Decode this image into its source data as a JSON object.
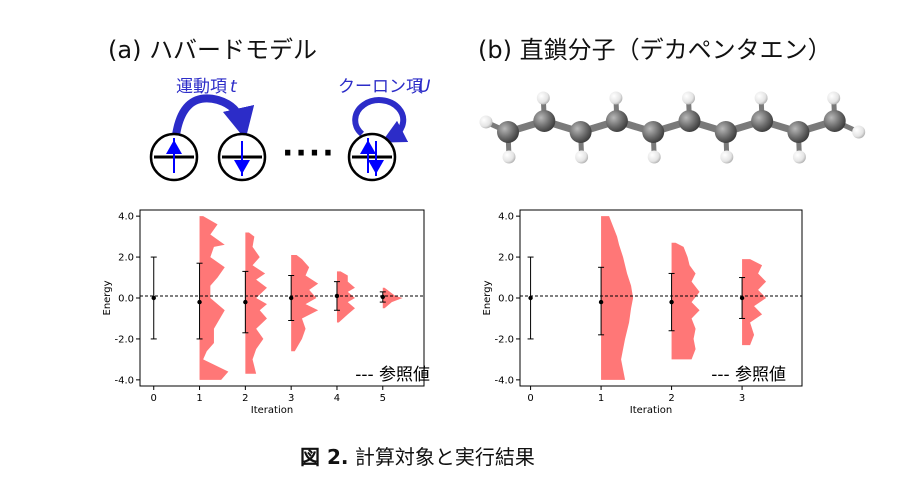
{
  "panel_a": {
    "title": "(a) ハバードモデル",
    "kinetic_label": "運動項",
    "kinetic_symbol": "t",
    "coulomb_label": "クーロン項",
    "coulomb_symbol": "U",
    "ellipsis": "····"
  },
  "panel_b": {
    "title": "(b) 直鎖分子（デカペンタエン）"
  },
  "caption": {
    "label": "図 2.",
    "text": " 計算対象と実行結果"
  },
  "colors": {
    "arrow_blue": "#2c2cc8",
    "fill_red": "#ff7777",
    "carbon": "#6a6a6a",
    "hydrogen": "#f0f0f0"
  },
  "chart_data": [
    {
      "type": "violin",
      "xlabel": "Iteration",
      "ylabel": "Energy",
      "xlim": [
        -0.3,
        5.9
      ],
      "ylim": [
        -4.3,
        4.3
      ],
      "x_ticks": [
        "0",
        "1",
        "2",
        "3",
        "4",
        "5"
      ],
      "y_ticks": [
        "4.0",
        "2.0",
        "0.0",
        "-2.0",
        "-4.0"
      ],
      "reference_line": 0.1,
      "legend": "--- 参照値",
      "series": [
        {
          "x": 0,
          "mean": 0.0,
          "err_low": -2.0,
          "err_high": 2.0,
          "dist": []
        },
        {
          "x": 1,
          "mean": -0.2,
          "err_low": -2.0,
          "err_high": 1.7,
          "dist": [
            [
              -4.0,
              0.6
            ],
            [
              -3.6,
              0.8
            ],
            [
              -3.0,
              0.1
            ],
            [
              -2.6,
              0.2
            ],
            [
              -2.2,
              0.4
            ],
            [
              -1.5,
              0.4
            ],
            [
              -0.6,
              0.7
            ],
            [
              -0.3,
              0.5
            ],
            [
              0.0,
              0.3
            ],
            [
              0.6,
              0.3
            ],
            [
              1.0,
              0.5
            ],
            [
              1.5,
              0.7
            ],
            [
              2.0,
              0.3
            ],
            [
              2.5,
              0.4
            ],
            [
              2.6,
              0.7
            ],
            [
              3.1,
              0.3
            ],
            [
              3.6,
              0.5
            ],
            [
              4.0,
              0.1
            ]
          ]
        },
        {
          "x": 2,
          "mean": -0.2,
          "err_low": -1.7,
          "err_high": 1.3,
          "dist": [
            [
              -3.7,
              0.3
            ],
            [
              -3.0,
              0.2
            ],
            [
              -2.5,
              0.3
            ],
            [
              -2.0,
              0.5
            ],
            [
              -1.5,
              0.3
            ],
            [
              -1.0,
              0.6
            ],
            [
              -0.6,
              0.4
            ],
            [
              -0.3,
              0.6
            ],
            [
              0.0,
              0.3
            ],
            [
              0.5,
              0.6
            ],
            [
              0.9,
              0.3
            ],
            [
              1.2,
              0.55
            ],
            [
              1.6,
              0.2
            ],
            [
              2.0,
              0.4
            ],
            [
              2.5,
              0.2
            ],
            [
              3.0,
              0.25
            ],
            [
              3.2,
              0.1
            ]
          ]
        },
        {
          "x": 3,
          "mean": 0.0,
          "err_low": -1.1,
          "err_high": 1.1,
          "dist": [
            [
              -2.6,
              0.1
            ],
            [
              -2.0,
              0.3
            ],
            [
              -1.5,
              0.4
            ],
            [
              -1.0,
              0.3
            ],
            [
              -0.6,
              0.75
            ],
            [
              -0.3,
              0.4
            ],
            [
              0.0,
              0.7
            ],
            [
              0.4,
              0.5
            ],
            [
              0.7,
              0.75
            ],
            [
              1.1,
              0.4
            ],
            [
              1.5,
              0.5
            ],
            [
              1.9,
              0.3
            ],
            [
              2.1,
              0.15
            ]
          ]
        },
        {
          "x": 4,
          "mean": 0.1,
          "err_low": -0.6,
          "err_high": 0.8,
          "dist": [
            [
              -1.2,
              0.05
            ],
            [
              -0.8,
              0.3
            ],
            [
              -0.5,
              0.5
            ],
            [
              -0.2,
              0.3
            ],
            [
              0.0,
              0.5
            ],
            [
              0.3,
              0.3
            ],
            [
              0.5,
              0.5
            ],
            [
              0.8,
              0.3
            ],
            [
              1.1,
              0.3
            ],
            [
              1.3,
              0.1
            ]
          ]
        },
        {
          "x": 5,
          "mean": 0.05,
          "err_low": -0.2,
          "err_high": 0.3,
          "dist": [
            [
              -0.5,
              0.05
            ],
            [
              -0.2,
              0.25
            ],
            [
              0.0,
              0.55
            ],
            [
              0.1,
              0.35
            ],
            [
              0.3,
              0.2
            ],
            [
              0.5,
              0.05
            ]
          ]
        }
      ]
    },
    {
      "type": "violin",
      "xlabel": "Iteration",
      "ylabel": "Energy",
      "xlim": [
        -0.15,
        3.85
      ],
      "ylim": [
        -4.3,
        4.3
      ],
      "x_ticks": [
        "0",
        "1",
        "2",
        "3"
      ],
      "y_ticks": [
        "4.0",
        "2.0",
        "0.0",
        "-2.0",
        "-4.0"
      ],
      "reference_line": 0.1,
      "legend": "--- 参照値",
      "series": [
        {
          "x": 0,
          "mean": 0.0,
          "err_low": -2.0,
          "err_high": 2.0,
          "dist": []
        },
        {
          "x": 1,
          "mean": -0.2,
          "err_low": -1.8,
          "err_high": 1.5,
          "dist": [
            [
              -4.0,
              0.6
            ],
            [
              -3.0,
              0.5
            ],
            [
              -2.0,
              0.6
            ],
            [
              -1.2,
              0.7
            ],
            [
              -0.5,
              0.75
            ],
            [
              0.0,
              0.8
            ],
            [
              0.6,
              0.75
            ],
            [
              1.2,
              0.65
            ],
            [
              2.0,
              0.55
            ],
            [
              2.6,
              0.45
            ],
            [
              3.0,
              0.4
            ],
            [
              3.5,
              0.3
            ],
            [
              4.0,
              0.2
            ]
          ]
        },
        {
          "x": 2,
          "mean": -0.2,
          "err_low": -1.6,
          "err_high": 1.2,
          "dist": [
            [
              -3.0,
              0.5
            ],
            [
              -2.5,
              0.6
            ],
            [
              -2.0,
              0.55
            ],
            [
              -1.5,
              0.6
            ],
            [
              -1.0,
              0.5
            ],
            [
              -0.6,
              0.7
            ],
            [
              -0.2,
              0.5
            ],
            [
              0.3,
              0.7
            ],
            [
              0.8,
              0.5
            ],
            [
              1.2,
              0.6
            ],
            [
              1.6,
              0.45
            ],
            [
              2.0,
              0.4
            ],
            [
              2.5,
              0.3
            ],
            [
              2.7,
              0.1
            ]
          ]
        },
        {
          "x": 3,
          "mean": 0.0,
          "err_low": -1.0,
          "err_high": 1.0,
          "dist": [
            [
              -2.3,
              0.2
            ],
            [
              -1.8,
              0.3
            ],
            [
              -1.2,
              0.2
            ],
            [
              -0.8,
              0.5
            ],
            [
              -0.4,
              0.3
            ],
            [
              0.0,
              0.6
            ],
            [
              0.4,
              0.4
            ],
            [
              0.8,
              0.6
            ],
            [
              1.2,
              0.4
            ],
            [
              1.6,
              0.5
            ],
            [
              1.9,
              0.2
            ]
          ]
        }
      ]
    }
  ]
}
